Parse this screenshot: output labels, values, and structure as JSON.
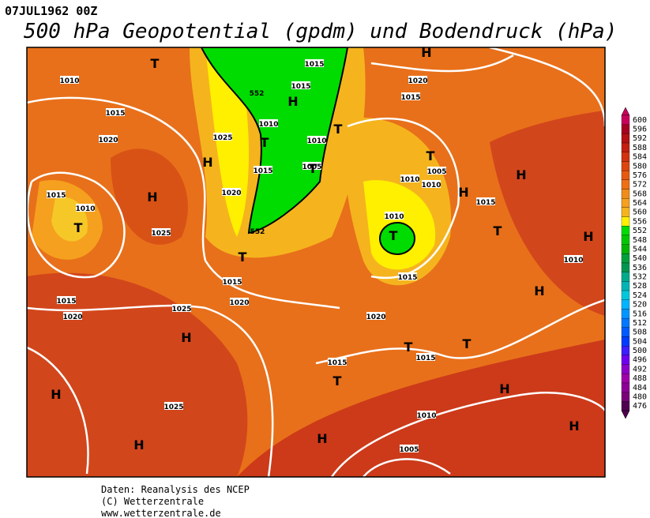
{
  "header": {
    "date": "07JUL1962 00Z",
    "title": "500 hPa Geopotential (gpdm) und Bodendruck (hPa)"
  },
  "map": {
    "isobar_labels": [
      "1010",
      "1015",
      "1020",
      "1025",
      "1020",
      "1015",
      "1010",
      "1025",
      "1015",
      "1020",
      "1015",
      "1020",
      "1025",
      "1025",
      "1015",
      "1015",
      "1010",
      "1010",
      "1015",
      "1005",
      "1020",
      "1015",
      "1005",
      "1010",
      "1010",
      "1015",
      "1010",
      "1015",
      "1020",
      "1015",
      "1015",
      "1010",
      "1005",
      "1010"
    ],
    "contour_labels": [
      "552",
      "552"
    ],
    "centers": [
      "T",
      "H",
      "T",
      "T",
      "H",
      "T",
      "H",
      "T",
      "T",
      "T",
      "H",
      "H",
      "T",
      "H",
      "T",
      "H",
      "H",
      "T",
      "T",
      "T",
      "H",
      "H",
      "H",
      "H",
      "H",
      "H"
    ]
  },
  "colorbar": {
    "levels": [
      600,
      596,
      592,
      588,
      584,
      580,
      576,
      572,
      568,
      564,
      560,
      556,
      552,
      548,
      544,
      540,
      536,
      532,
      528,
      524,
      520,
      516,
      512,
      508,
      504,
      500,
      496,
      492,
      488,
      484,
      480,
      476
    ],
    "colors": [
      "#c8005a",
      "#a50021",
      "#b40f14",
      "#c31e0f",
      "#d2320f",
      "#dc460f",
      "#e65a0f",
      "#ee7014",
      "#f08c19",
      "#f5a01e",
      "#f5b41e",
      "#fff000",
      "#00dc00",
      "#00c800",
      "#00b400",
      "#00a03c",
      "#009650",
      "#00aa8c",
      "#00b4b4",
      "#00c8dc",
      "#00b4ff",
      "#0096ff",
      "#0078ff",
      "#005aff",
      "#003cff",
      "#3c1eff",
      "#6e00f0",
      "#8c00c8",
      "#a000aa",
      "#8c0096",
      "#780078",
      "#500050"
    ]
  },
  "footer": [
    "Daten: Reanalysis des NCEP",
    "(C) Wetterzentrale",
    "www.wetterzentrale.de"
  ]
}
